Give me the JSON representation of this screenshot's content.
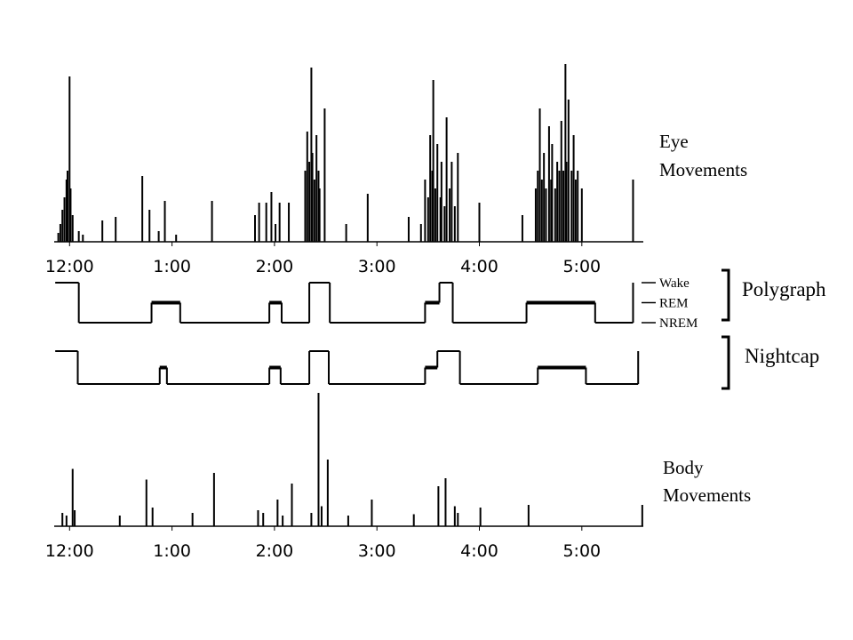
{
  "chart_data": [
    {
      "type": "spike",
      "label": [
        "Eye",
        "Movements"
      ],
      "xlim": [
        -0.15,
        5.6
      ],
      "ylim": [
        0,
        100
      ],
      "xticks": [
        {
          "value": 0,
          "label": "12:00"
        },
        {
          "value": 1,
          "label": "1:00"
        },
        {
          "value": 2,
          "label": "2:00"
        },
        {
          "value": 3,
          "label": "3:00"
        },
        {
          "value": 4,
          "label": "4:00"
        },
        {
          "value": 5,
          "label": "5:00"
        }
      ],
      "x": [
        -0.11,
        -0.09,
        -0.07,
        -0.05,
        -0.03,
        -0.02,
        0.0,
        0.01,
        0.03,
        0.09,
        0.13,
        0.32,
        0.45,
        0.71,
        0.78,
        0.87,
        0.93,
        1.04,
        1.39,
        1.81,
        1.85,
        1.92,
        1.97,
        2.01,
        2.05,
        2.14,
        2.3,
        2.32,
        2.34,
        2.36,
        2.37,
        2.39,
        2.41,
        2.43,
        2.44,
        2.49,
        2.7,
        2.91,
        3.31,
        3.43,
        3.47,
        3.5,
        3.52,
        3.54,
        3.55,
        3.57,
        3.59,
        3.62,
        3.63,
        3.66,
        3.68,
        3.71,
        3.73,
        3.76,
        3.79,
        4.0,
        4.42,
        4.55,
        4.57,
        4.59,
        4.61,
        4.63,
        4.65,
        4.68,
        4.7,
        4.71,
        4.74,
        4.76,
        4.78,
        4.8,
        4.82,
        4.84,
        4.85,
        4.87,
        4.9,
        4.92,
        4.94,
        4.96,
        5.0,
        5.5
      ],
      "values": [
        5,
        10,
        18,
        25,
        35,
        40,
        93,
        30,
        15,
        6,
        4,
        12,
        14,
        37,
        18,
        6,
        23,
        4,
        23,
        15,
        22,
        22,
        28,
        10,
        22,
        22,
        40,
        62,
        45,
        98,
        50,
        35,
        60,
        40,
        30,
        75,
        10,
        27,
        14,
        10,
        35,
        25,
        60,
        40,
        91,
        30,
        55,
        25,
        45,
        20,
        70,
        30,
        45,
        20,
        50,
        22,
        15,
        30,
        40,
        75,
        35,
        50,
        30,
        65,
        35,
        55,
        30,
        45,
        40,
        68,
        40,
        100,
        45,
        80,
        40,
        60,
        35,
        40,
        30,
        35
      ]
    },
    {
      "type": "step",
      "label": "Polygraph",
      "xlim": [
        -0.15,
        5.6
      ],
      "ylim": [
        0,
        2
      ],
      "yticks": [
        {
          "value": 2,
          "label": "Wake"
        },
        {
          "value": 1,
          "label": "REM"
        },
        {
          "value": 0,
          "label": "NREM"
        }
      ],
      "x": [
        -0.14,
        0.09,
        0.8,
        1.08,
        1.95,
        2.07,
        2.34,
        2.54,
        3.47,
        3.61,
        3.74,
        4.46,
        5.13,
        5.5
      ],
      "values": [
        2,
        0,
        1,
        0,
        1,
        0,
        2,
        0,
        1,
        2,
        0,
        1,
        0,
        2
      ]
    },
    {
      "type": "step",
      "label": "Nightcap",
      "xlim": [
        -0.15,
        5.6
      ],
      "ylim": [
        0,
        2
      ],
      "x": [
        -0.14,
        0.08,
        0.88,
        0.95,
        1.95,
        2.06,
        2.34,
        2.53,
        3.47,
        3.59,
        3.81,
        4.57,
        5.04,
        5.55
      ],
      "values": [
        2,
        0,
        1,
        0,
        1,
        0,
        2,
        0,
        1,
        2,
        0,
        1,
        0,
        2
      ]
    },
    {
      "type": "spike",
      "label": [
        "Body",
        "Movements"
      ],
      "xlim": [
        -0.15,
        5.6
      ],
      "ylim": [
        0,
        100
      ],
      "xticks": [
        {
          "value": 0,
          "label": "12:00"
        },
        {
          "value": 1,
          "label": "1:00"
        },
        {
          "value": 2,
          "label": "2:00"
        },
        {
          "value": 3,
          "label": "3:00"
        },
        {
          "value": 4,
          "label": "4:00"
        },
        {
          "value": 5,
          "label": "5:00"
        }
      ],
      "x": [
        -0.07,
        -0.03,
        0.03,
        0.05,
        0.49,
        0.75,
        0.81,
        1.2,
        1.41,
        1.84,
        1.89,
        2.03,
        2.08,
        2.17,
        2.36,
        2.43,
        2.46,
        2.52,
        2.72,
        2.95,
        3.36,
        3.6,
        3.67,
        3.76,
        3.79,
        4.01,
        4.48,
        5.59
      ],
      "values": [
        10,
        8,
        43,
        12,
        8,
        35,
        14,
        10,
        40,
        12,
        10,
        20,
        8,
        32,
        10,
        100,
        15,
        50,
        8,
        20,
        9,
        30,
        36,
        15,
        10,
        14,
        16,
        16
      ]
    }
  ]
}
